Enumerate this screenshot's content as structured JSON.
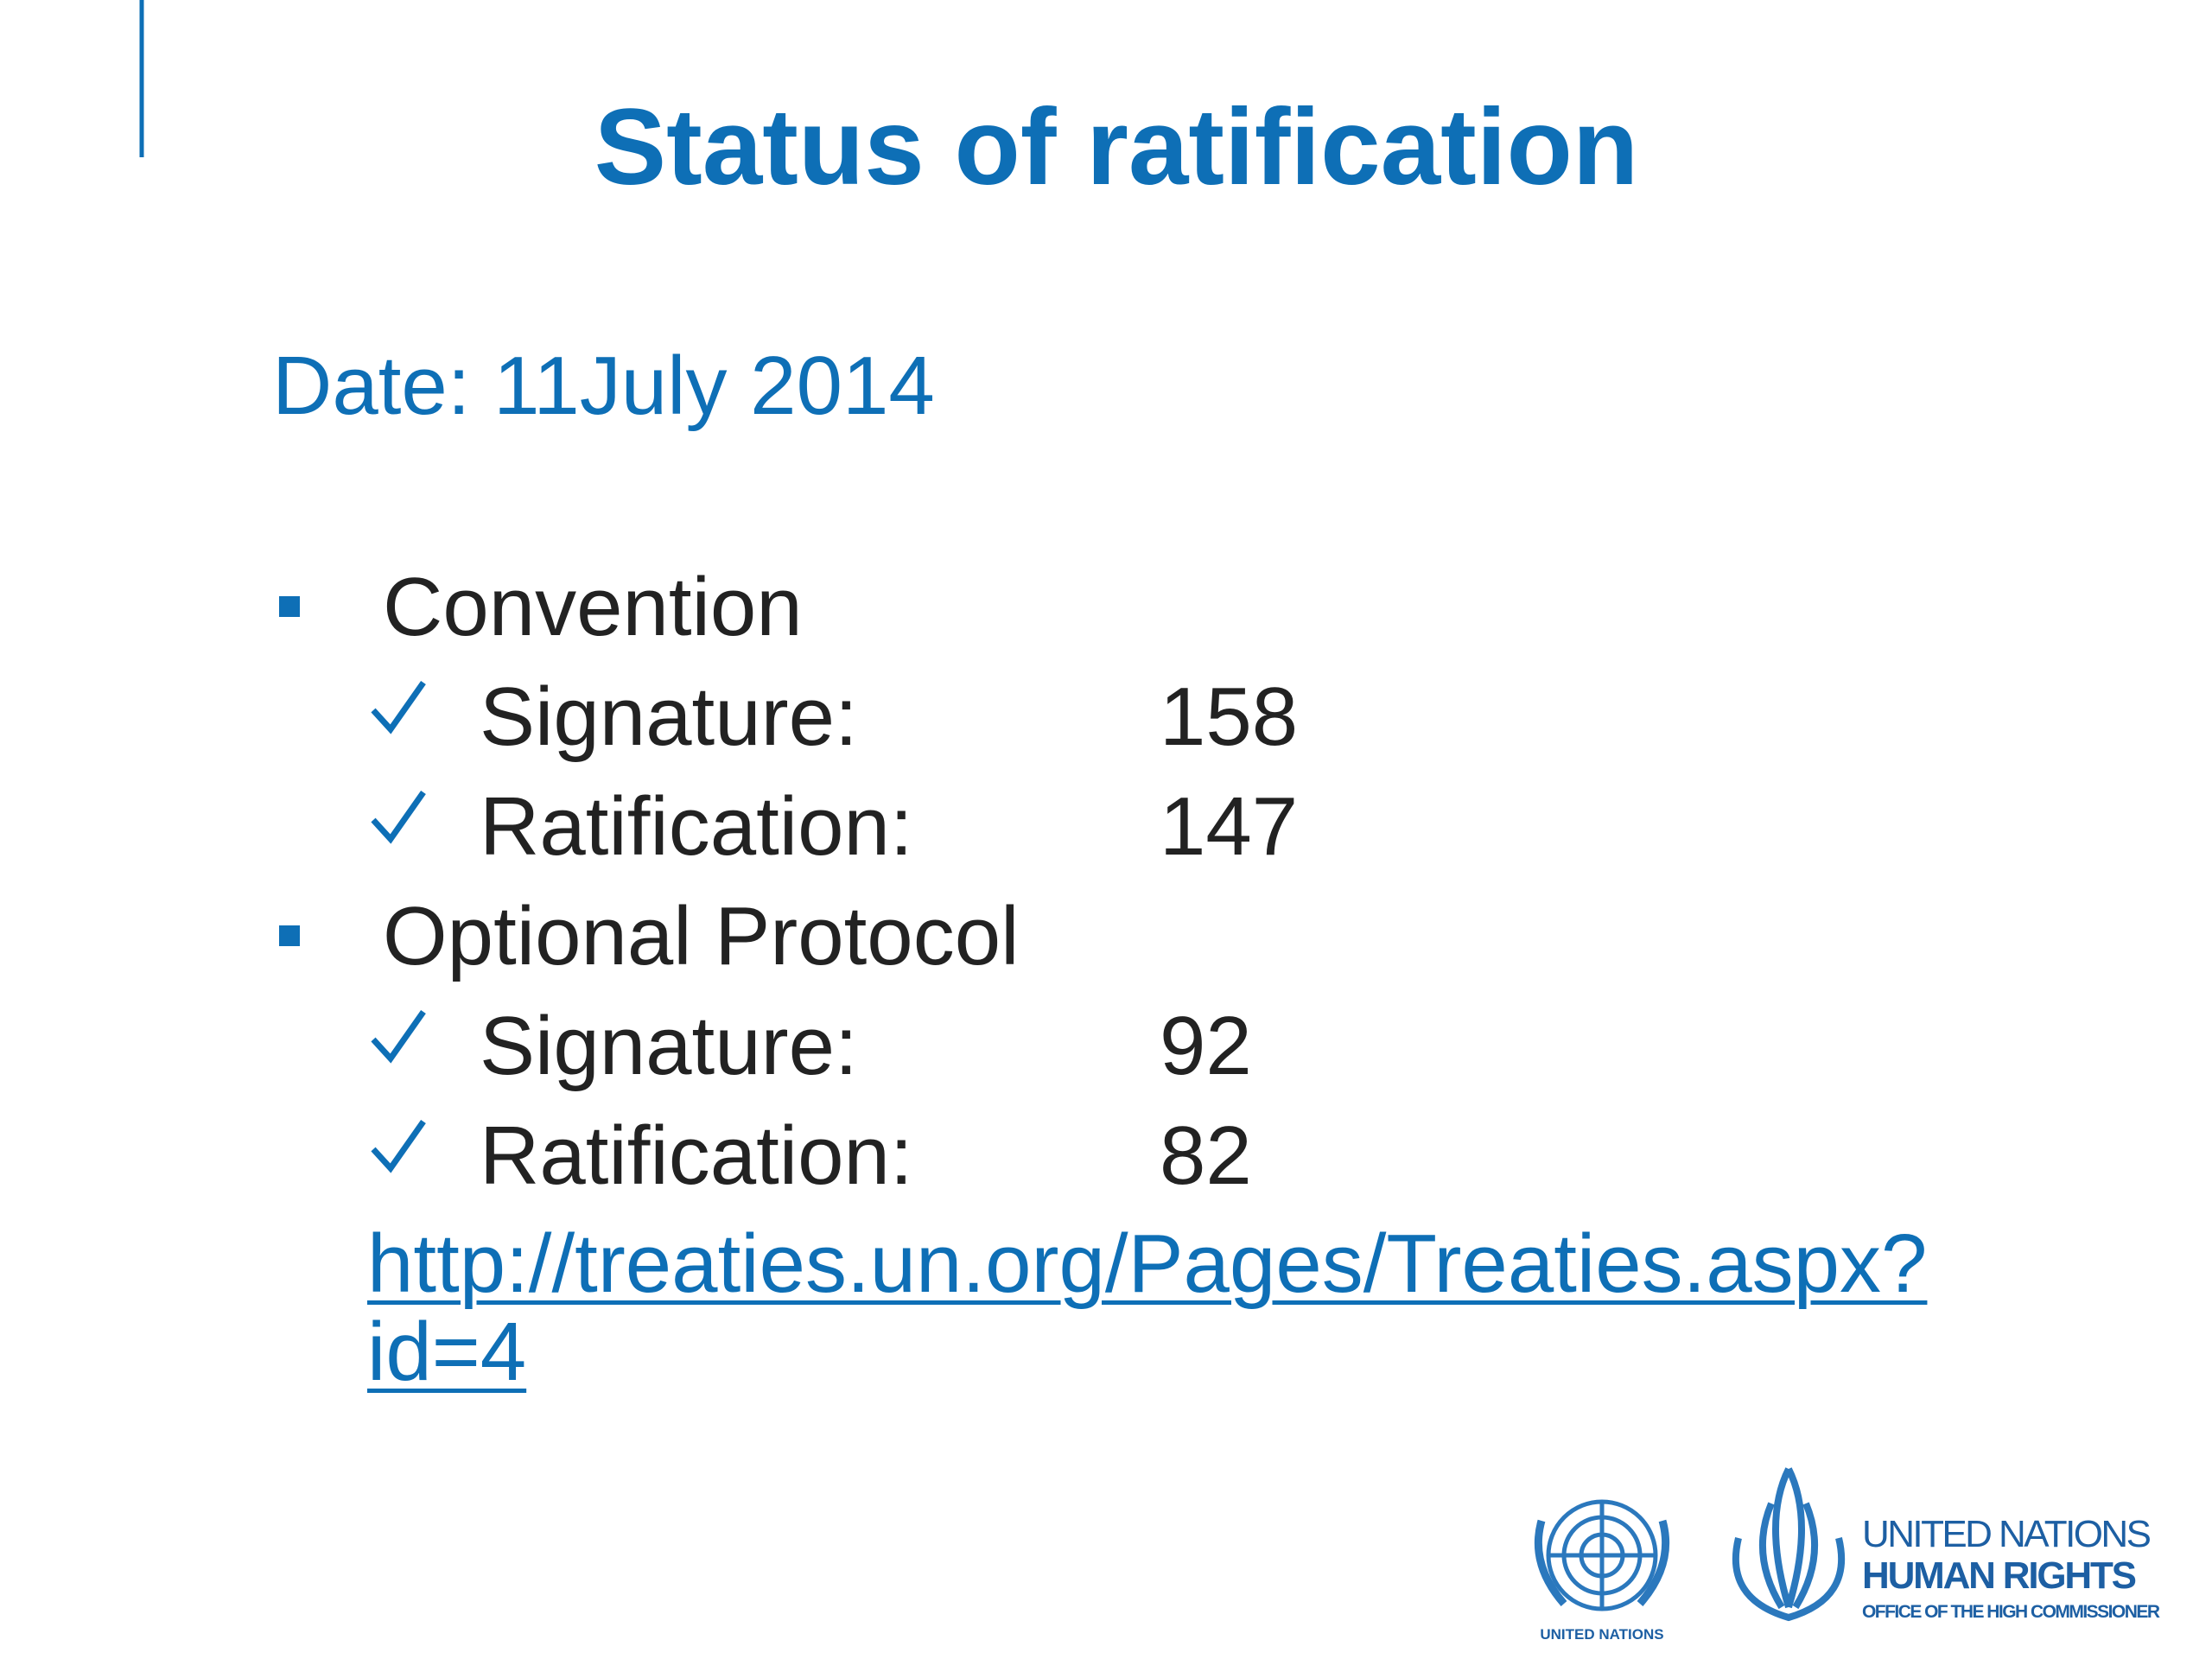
{
  "slide": {
    "title": "Status of ratification",
    "date": "Date: 11July 2014",
    "sections": [
      {
        "name": "Convention",
        "items": [
          {
            "label": "Signature:",
            "value": 158
          },
          {
            "label": "Ratification:",
            "value": 147
          }
        ]
      },
      {
        "name": "Optional Protocol",
        "items": [
          {
            "label": "Signature:",
            "value": 92
          },
          {
            "label": "Ratification:",
            "value": 82
          }
        ]
      }
    ],
    "link": "http://treaties.un.org/Pages/Treaties.aspx?id=4",
    "logos": {
      "un_caption": "UNITED NATIONS",
      "ohchr_line1": "UNITED NATIONS",
      "ohchr_line2": "HUMAN RIGHTS",
      "ohchr_line3": "OFFICE OF THE HIGH COMMISSIONER"
    }
  }
}
